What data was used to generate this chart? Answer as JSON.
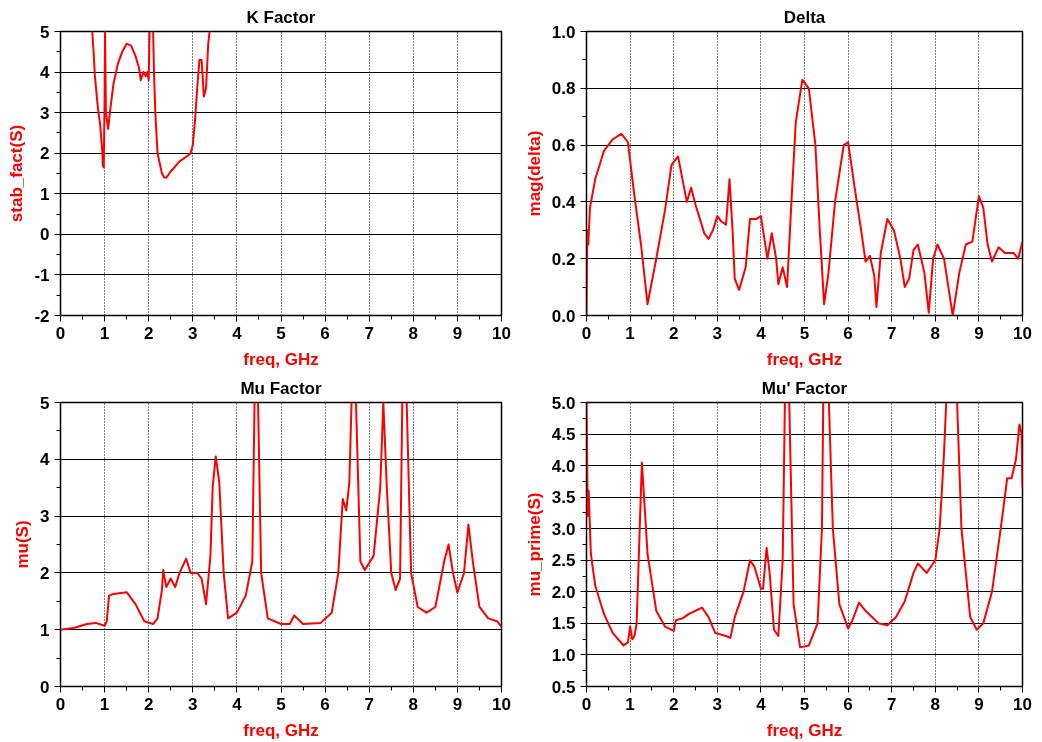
{
  "chart_data": [
    {
      "type": "line",
      "title": "K Factor",
      "xlabel": "freq, GHz",
      "ylabel": "stab_fact(S)",
      "xlim": [
        0,
        10
      ],
      "ylim": [
        -2,
        5
      ],
      "xticks": [
        0,
        1,
        2,
        3,
        4,
        5,
        6,
        7,
        8,
        9,
        10
      ],
      "yticks": [
        -2,
        -1,
        0,
        1,
        2,
        3,
        4,
        5
      ],
      "grid": true,
      "x": [
        0.72,
        0.75,
        0.78,
        0.85,
        0.9,
        0.95,
        0.96,
        0.98,
        1.0,
        1.01,
        1.03,
        1.08,
        1.12,
        1.2,
        1.3,
        1.4,
        1.5,
        1.6,
        1.7,
        1.78,
        1.82,
        1.88,
        1.93,
        1.97,
        2.0,
        2.02,
        2.06,
        2.1,
        2.12,
        2.15,
        2.2,
        2.3,
        2.35,
        2.4,
        2.5,
        2.7,
        2.9,
        2.95,
        3.0,
        3.05,
        3.1,
        3.15,
        3.2,
        3.25,
        3.3,
        3.35,
        3.38
      ],
      "series": [
        {
          "color": "#ff0000",
          "values": [
            5,
            4.5,
            3.9,
            3.1,
            2.7,
            2.0,
            1.7,
            1.65,
            3.3,
            5,
            3.0,
            2.6,
            3.0,
            3.7,
            4.2,
            4.5,
            4.7,
            4.65,
            4.4,
            4.1,
            3.8,
            4.0,
            3.9,
            4.0,
            3.8,
            5,
            null,
            5,
            4.0,
            3.0,
            2.0,
            1.5,
            1.4,
            1.4,
            1.55,
            1.8,
            1.95,
            2.0,
            2.2,
            2.8,
            3.6,
            4.3,
            4.3,
            3.4,
            3.6,
            4.7,
            5
          ]
        }
      ]
    },
    {
      "type": "line",
      "title": "Delta",
      "xlabel": "freq, GHz",
      "ylabel": "mag(delta)",
      "xlim": [
        0,
        10
      ],
      "ylim": [
        0,
        1
      ],
      "xticks": [
        0,
        1,
        2,
        3,
        4,
        5,
        6,
        7,
        8,
        9,
        10
      ],
      "yticks": [
        {
          "value": 0,
          "label": "0.0"
        },
        0.2,
        0.4,
        0.6,
        0.8,
        {
          "value": 1,
          "label": "1.0"
        }
      ],
      "grid": true,
      "x": [
        0,
        0.02,
        0.04,
        0.08,
        0.2,
        0.4,
        0.6,
        0.8,
        0.95,
        1.1,
        1.25,
        1.4,
        1.6,
        1.8,
        1.95,
        2.1,
        2.2,
        2.3,
        2.4,
        2.5,
        2.7,
        2.8,
        2.9,
        3.0,
        3.1,
        3.2,
        3.28,
        3.35,
        3.4,
        3.5,
        3.65,
        3.75,
        3.9,
        4.0,
        4.15,
        4.25,
        4.35,
        4.4,
        4.5,
        4.6,
        4.7,
        4.8,
        4.95,
        5.1,
        5.25,
        5.35,
        5.45,
        5.55,
        5.7,
        5.9,
        6.0,
        6.15,
        6.3,
        6.4,
        6.5,
        6.6,
        6.65,
        6.75,
        6.9,
        7.05,
        7.2,
        7.3,
        7.4,
        7.5,
        7.6,
        7.75,
        7.85,
        7.95,
        8.05,
        8.2,
        8.3,
        8.4,
        8.55,
        8.7,
        8.85,
        9.0,
        9.1,
        9.2,
        9.3,
        9.45,
        9.6,
        9.8,
        9.9,
        10.0
      ],
      "series": [
        {
          "color": "#ff0000",
          "values": [
            0,
            0.3,
            0.25,
            0.38,
            0.48,
            0.58,
            0.62,
            0.64,
            0.61,
            0.42,
            0.25,
            0.04,
            0.2,
            0.37,
            0.53,
            0.56,
            0.48,
            0.4,
            0.45,
            0.39,
            0.29,
            0.27,
            0.3,
            0.35,
            0.33,
            0.32,
            0.48,
            0.3,
            0.13,
            0.09,
            0.17,
            0.34,
            0.34,
            0.35,
            0.2,
            0.29,
            0.2,
            0.11,
            0.17,
            0.1,
            0.4,
            0.68,
            0.83,
            0.8,
            0.6,
            0.3,
            0.04,
            0.15,
            0.4,
            0.6,
            0.61,
            0.45,
            0.3,
            0.19,
            0.21,
            0.14,
            0.03,
            0.22,
            0.34,
            0.3,
            0.2,
            0.1,
            0.13,
            0.23,
            0.25,
            0.15,
            0.01,
            0.2,
            0.25,
            0.2,
            0.1,
            0.0,
            0.15,
            0.25,
            0.26,
            0.42,
            0.38,
            0.25,
            0.19,
            0.24,
            0.22,
            0.22,
            0.2,
            0.26
          ]
        }
      ]
    },
    {
      "type": "line",
      "title": "Mu Factor",
      "xlabel": "freq, GHz",
      "ylabel": "mu(S)",
      "xlim": [
        0,
        10
      ],
      "ylim": [
        0,
        5
      ],
      "xticks": [
        0,
        1,
        2,
        3,
        4,
        5,
        6,
        7,
        8,
        9,
        10
      ],
      "yticks": [
        0,
        1,
        2,
        3,
        4,
        5
      ],
      "grid": true,
      "x": [
        0,
        0.3,
        0.6,
        0.8,
        1.0,
        1.05,
        1.1,
        1.2,
        1.5,
        1.7,
        1.9,
        2.1,
        2.2,
        2.3,
        2.33,
        2.4,
        2.5,
        2.6,
        2.7,
        2.85,
        2.95,
        3.1,
        3.2,
        3.3,
        3.4,
        3.45,
        3.52,
        3.6,
        3.7,
        3.8,
        4.0,
        4.2,
        4.35,
        4.4,
        4.44,
        4.48,
        4.55,
        4.7,
        5.0,
        5.2,
        5.3,
        5.5,
        5.9,
        6.15,
        6.3,
        6.4,
        6.48,
        6.55,
        6.6,
        6.65,
        6.7,
        6.8,
        6.9,
        7.1,
        7.25,
        7.32,
        7.4,
        7.5,
        7.6,
        7.7,
        7.75,
        7.8,
        7.85,
        7.95,
        8.1,
        8.3,
        8.5,
        8.7,
        8.8,
        8.9,
        9.0,
        9.15,
        9.25,
        9.35,
        9.5,
        9.7,
        9.9,
        10.0
      ],
      "series": [
        {
          "color": "#ff0000",
          "values": [
            1.0,
            1.03,
            1.1,
            1.12,
            1.07,
            1.15,
            1.6,
            1.63,
            1.66,
            1.45,
            1.15,
            1.1,
            1.2,
            1.7,
            2.05,
            1.75,
            1.9,
            1.75,
            2.0,
            2.25,
            2.0,
            2.0,
            1.9,
            1.45,
            2.3,
            3.5,
            4.05,
            3.6,
            2.0,
            1.2,
            1.3,
            1.6,
            2.2,
            5,
            null,
            5,
            2.0,
            1.2,
            1.1,
            1.1,
            1.25,
            1.1,
            1.12,
            1.3,
            2.0,
            3.3,
            3.1,
            3.6,
            5,
            null,
            5,
            2.2,
            2.05,
            2.3,
            3.5,
            5,
            3.5,
            2.0,
            1.7,
            1.9,
            5,
            null,
            5,
            2.0,
            1.4,
            1.3,
            1.4,
            2.2,
            2.5,
            2.0,
            1.65,
            2.0,
            2.85,
            2.2,
            1.4,
            1.2,
            1.15,
            1.05
          ]
        }
      ]
    },
    {
      "type": "line",
      "title": "Mu' Factor",
      "xlabel": "freq, GHz",
      "ylabel": "mu_prime(S)",
      "xlim": [
        0,
        10
      ],
      "ylim": [
        0.5,
        5
      ],
      "xticks": [
        0,
        1,
        2,
        3,
        4,
        5,
        6,
        7,
        8,
        9,
        10
      ],
      "yticks": [
        0.5,
        {
          "value": 1,
          "label": "1.0"
        },
        1.5,
        {
          "value": 2,
          "label": "2.0"
        },
        2.5,
        {
          "value": 3,
          "label": "3.0"
        },
        3.5,
        {
          "value": 4,
          "label": "4.0"
        },
        4.5,
        {
          "value": 5,
          "label": "5.0"
        }
      ],
      "grid": true,
      "x": [
        0,
        0.03,
        0.05,
        0.1,
        0.2,
        0.4,
        0.6,
        0.85,
        0.95,
        1.0,
        1.05,
        1.1,
        1.15,
        1.22,
        1.27,
        1.32,
        1.4,
        1.6,
        1.8,
        2.0,
        2.05,
        2.2,
        2.35,
        2.5,
        2.65,
        2.8,
        2.95,
        3.2,
        3.3,
        3.4,
        3.6,
        3.75,
        3.85,
        4.0,
        4.05,
        4.13,
        4.2,
        4.3,
        4.4,
        4.5,
        4.55,
        4.6,
        4.65,
        4.75,
        4.9,
        5.1,
        5.3,
        5.4,
        5.43,
        5.5,
        5.56,
        5.65,
        5.8,
        6.0,
        6.1,
        6.25,
        6.4,
        6.55,
        6.7,
        6.9,
        7.1,
        7.3,
        7.5,
        7.6,
        7.8,
        8.0,
        8.1,
        8.2,
        8.25,
        8.4,
        8.5,
        8.55,
        8.6,
        8.8,
        8.95,
        9.1,
        9.3,
        9.5,
        9.65,
        9.75,
        9.85,
        9.93,
        9.98,
        10.0
      ],
      "series": [
        {
          "color": "#ff0000",
          "values": [
            5,
            3.2,
            3.6,
            2.6,
            2.1,
            1.65,
            1.35,
            1.15,
            1.2,
            1.45,
            1.25,
            1.3,
            1.5,
            3.0,
            4.05,
            3.5,
            2.6,
            1.7,
            1.45,
            1.38,
            1.55,
            1.58,
            1.65,
            1.7,
            1.75,
            1.6,
            1.35,
            1.3,
            1.27,
            1.6,
            2.0,
            2.5,
            2.4,
            2.05,
            2.05,
            2.7,
            2.3,
            1.4,
            1.3,
            2.5,
            5,
            null,
            5,
            1.8,
            1.12,
            1.15,
            1.5,
            3.0,
            5,
            null,
            5,
            3.0,
            1.8,
            1.42,
            1.55,
            1.83,
            1.7,
            1.6,
            1.5,
            1.47,
            1.6,
            1.85,
            2.3,
            2.45,
            2.3,
            2.5,
            3.0,
            4.2,
            5,
            null,
            5,
            4.0,
            3.0,
            1.6,
            1.4,
            1.5,
            2.0,
            3.0,
            3.8,
            3.8,
            4.1,
            4.65,
            4.5,
            3.65
          ]
        }
      ]
    }
  ]
}
